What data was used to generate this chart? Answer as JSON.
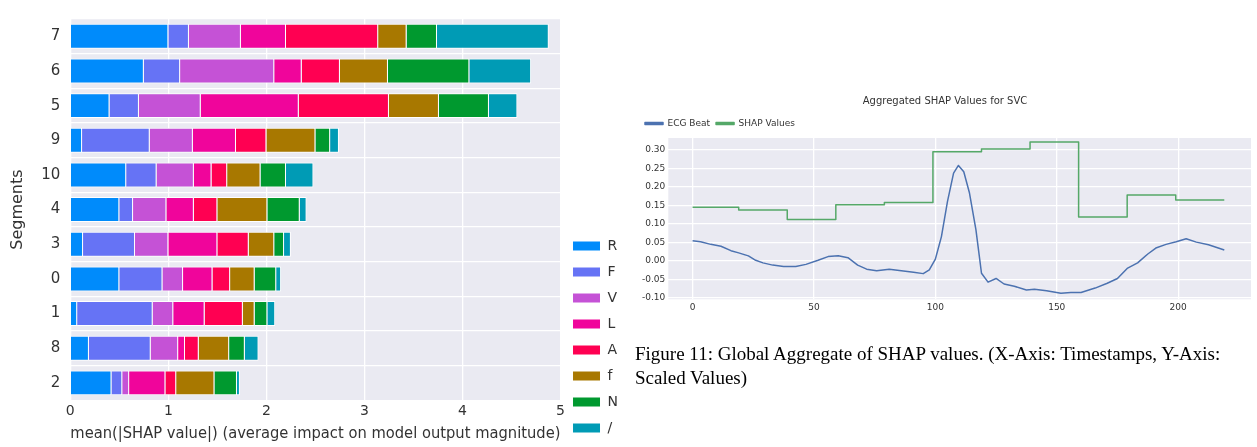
{
  "chart_data": [
    {
      "type": "bar",
      "orientation": "horizontal",
      "stacked": true,
      "ylabel": "Segments",
      "xlabel": "mean(|SHAP value|) (average impact on model output magnitude)",
      "categories": [
        "7",
        "6",
        "5",
        "9",
        "10",
        "4",
        "3",
        "0",
        "1",
        "8",
        "2"
      ],
      "xlim": [
        0,
        5
      ],
      "xticks": [
        0,
        1,
        2,
        3,
        4,
        5
      ],
      "grid": true,
      "legend": "bottom right",
      "series": [
        {
          "name": "R",
          "color": "#008bfb",
          "values": [
            1.0,
            0.75,
            0.4,
            0.12,
            0.57,
            0.5,
            0.13,
            0.5,
            0.07,
            0.19,
            0.42
          ]
        },
        {
          "name": "F",
          "color": "#6673f5",
          "values": [
            0.21,
            0.37,
            0.3,
            0.69,
            0.31,
            0.14,
            0.53,
            0.44,
            0.77,
            0.63,
            0.11
          ]
        },
        {
          "name": "V",
          "color": "#c552d6",
          "values": [
            0.53,
            0.96,
            0.63,
            0.44,
            0.38,
            0.34,
            0.34,
            0.21,
            0.21,
            0.28,
            0.07
          ]
        },
        {
          "name": "L",
          "color": "#f0059b",
          "values": [
            0.46,
            0.28,
            1.0,
            0.44,
            0.18,
            0.28,
            0.5,
            0.3,
            0.32,
            0.07,
            0.37
          ]
        },
        {
          "name": "A",
          "color": "#ff0052",
          "values": [
            0.94,
            0.39,
            0.92,
            0.31,
            0.16,
            0.24,
            0.32,
            0.18,
            0.39,
            0.14,
            0.11
          ]
        },
        {
          "name": "f",
          "color": "#a87800",
          "values": [
            0.29,
            0.49,
            0.51,
            0.5,
            0.34,
            0.51,
            0.26,
            0.25,
            0.12,
            0.31,
            0.39
          ]
        },
        {
          "name": "N",
          "color": "#00992f",
          "values": [
            0.31,
            0.83,
            0.51,
            0.15,
            0.26,
            0.33,
            0.1,
            0.22,
            0.13,
            0.16,
            0.23
          ]
        },
        {
          "name": "/",
          "color": "#009bb5",
          "values": [
            1.14,
            0.63,
            0.29,
            0.09,
            0.28,
            0.07,
            0.07,
            0.05,
            0.08,
            0.14,
            0.03
          ]
        }
      ]
    },
    {
      "type": "line",
      "title": "Aggregated SHAP Values for SVC",
      "xlim": [
        -10,
        230
      ],
      "xticks": [
        0,
        50,
        100,
        150,
        200
      ],
      "ylim": [
        -0.103,
        0.332
      ],
      "yticks": [
        {
          "value": -0.1,
          "label": "-0.10"
        },
        {
          "value": -0.05,
          "label": "-0.05"
        },
        {
          "value": 0,
          "label": "0.00"
        },
        {
          "value": 0.05,
          "label": "0.05"
        },
        {
          "value": 0.1,
          "label": "0.10"
        },
        {
          "value": 0.15,
          "label": "0.15"
        },
        {
          "value": 0.2,
          "label": "0.20"
        },
        {
          "value": 0.25,
          "label": "0.25"
        },
        {
          "value": 0.3,
          "label": "0.30"
        }
      ],
      "grid": true,
      "legend": "top left",
      "annotations": [
        "Figure 11: Global Aggregate of SHAP values. (X-Axis: Timestamps, Y-Axis: Scaled Values)"
      ],
      "series": [
        {
          "name": "ECG Beat",
          "color": "#4c72b0",
          "x": [
            0,
            3.3,
            7.5,
            11.7,
            15.8,
            19,
            23,
            26,
            29,
            33,
            37.5,
            42.5,
            46.7,
            51.7,
            55.8,
            60,
            64,
            68,
            71.7,
            75.8,
            81,
            86,
            91,
            95,
            97.5,
            100,
            102.5,
            105,
            107.5,
            109.5,
            111.7,
            114,
            116.7,
            119,
            121.7,
            125,
            128.3,
            132.5,
            137.5,
            140.8,
            145.8,
            151.7,
            155.8,
            160,
            165.8,
            170.8,
            175,
            179.2,
            183.3,
            187.5,
            190.8,
            195,
            199.2,
            203.3,
            207.5,
            212.5,
            219
          ],
          "values": [
            0.055,
            0.052,
            0.045,
            0.04,
            0.028,
            0.022,
            0.014,
            0.002,
            -0.005,
            -0.011,
            -0.015,
            -0.015,
            -0.009,
            0.002,
            0.012,
            0.014,
            0.009,
            -0.011,
            -0.022,
            -0.026,
            -0.022,
            -0.026,
            -0.03,
            -0.034,
            -0.024,
            0.005,
            0.066,
            0.161,
            0.237,
            0.258,
            0.241,
            0.185,
            0.085,
            -0.033,
            -0.057,
            -0.047,
            -0.062,
            -0.068,
            -0.078,
            -0.076,
            -0.08,
            -0.087,
            -0.085,
            -0.085,
            -0.073,
            -0.06,
            -0.047,
            -0.019,
            -0.005,
            0.019,
            0.035,
            0.045,
            0.052,
            0.06,
            0.051,
            0.044,
            0.03
          ]
        },
        {
          "name": "SHAP Values",
          "type": "step",
          "color": "#55a868",
          "x": [
            0,
            19,
            39,
            59,
            79,
            99,
            119,
            139,
            159,
            179,
            199,
            219
          ],
          "values": [
            0.145,
            0.138,
            0.112,
            0.152,
            0.158,
            0.295,
            0.302,
            0.321,
            0.119,
            0.178,
            0.165,
            0.165
          ]
        }
      ]
    }
  ]
}
